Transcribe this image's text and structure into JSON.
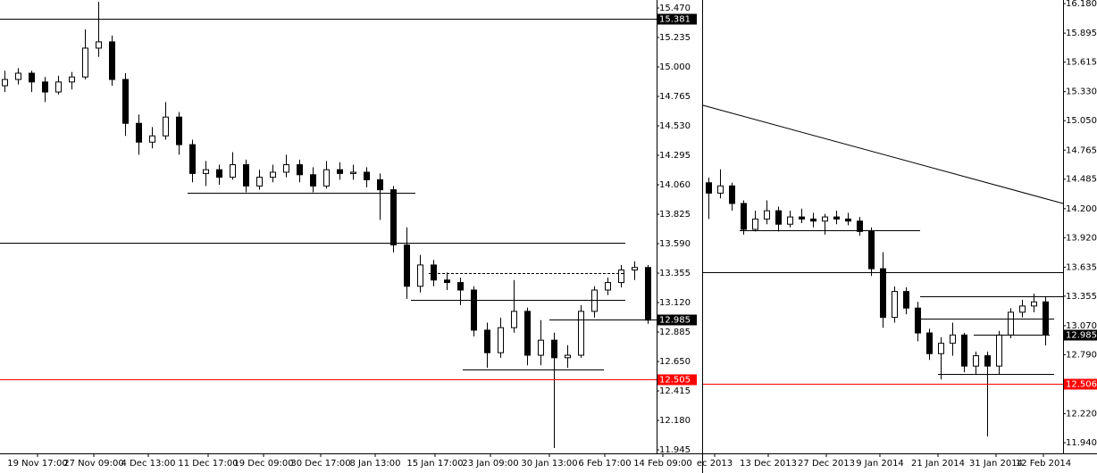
{
  "chart_data": [
    {
      "type": "candlestick",
      "up_color": "#ffffff",
      "down_color": "#000000",
      "categories": [
        "19 Nov 17:00",
        "27 Nov 09:00",
        "4 Dec 13:00",
        "11 Dec 17:00",
        "19 Dec 09:00",
        "30 Dec 17:00",
        "8 Jan 13:00",
        "15 Jan 17:00",
        "23 Jan 09:00",
        "30 Jan 13:00",
        "6 Feb 17:00",
        "14 Feb 09:00"
      ],
      "ylim": [
        11.917,
        15.534
      ],
      "yticks": [
        {
          "value": 15.47,
          "label": "15.470"
        },
        15.235,
        {
          "value": 15,
          "label": "15.000"
        },
        14.765,
        {
          "value": 14.53,
          "label": "14.530"
        },
        14.295,
        {
          "value": 14.06,
          "label": "14.060"
        },
        13.825,
        {
          "value": 13.59,
          "label": "13.590"
        },
        13.355,
        {
          "value": 13.12,
          "label": "13.120"
        },
        12.885,
        {
          "value": 12.65,
          "label": "12.650"
        },
        12.415,
        {
          "value": 12.18,
          "label": "12.180"
        },
        11.945
      ],
      "levels": [
        {
          "value": 15.381,
          "color": "#000000",
          "boxed": true
        },
        {
          "value": 13.597,
          "color": "#000000"
        },
        {
          "value": 12.505,
          "color": "#ff0000",
          "boxed": true
        },
        {
          "value": 12.985,
          "color": "#000000",
          "boxed": true
        },
        {
          "value": 13.996,
          "color": "#000000"
        },
        {
          "value": 13.141,
          "color": "#000000"
        },
        {
          "value": 13.355,
          "color": "#000000",
          "dash": true
        },
        {
          "value": 12.585,
          "color": "#000000"
        }
      ],
      "candles": [
        [
          14.85,
          14.97,
          14.8,
          14.9
        ],
        [
          14.9,
          14.99,
          14.86,
          14.95
        ],
        [
          14.95,
          14.97,
          14.8,
          14.88
        ],
        [
          14.88,
          14.92,
          14.72,
          14.8
        ],
        [
          14.8,
          14.93,
          14.78,
          14.88
        ],
        [
          14.88,
          14.96,
          14.82,
          14.92
        ],
        [
          14.92,
          15.3,
          14.9,
          15.15
        ],
        [
          15.15,
          15.52,
          15.08,
          15.2
        ],
        [
          15.2,
          15.25,
          14.85,
          14.9
        ],
        [
          14.9,
          14.95,
          14.45,
          14.55
        ],
        [
          14.55,
          14.62,
          14.3,
          14.4
        ],
        [
          14.4,
          14.52,
          14.35,
          14.45
        ],
        [
          14.45,
          14.72,
          14.42,
          14.6
        ],
        [
          14.6,
          14.64,
          14.3,
          14.38
        ],
        [
          14.38,
          14.42,
          14.08,
          14.15
        ],
        [
          14.15,
          14.25,
          14.05,
          14.18
        ],
        [
          14.18,
          14.22,
          14.06,
          14.12
        ],
        [
          14.12,
          14.32,
          14.1,
          14.22
        ],
        [
          14.22,
          14.26,
          14.0,
          14.05
        ],
        [
          14.05,
          14.18,
          14.02,
          14.12
        ],
        [
          14.12,
          14.22,
          14.08,
          14.16
        ],
        [
          14.16,
          14.3,
          14.12,
          14.22
        ],
        [
          14.22,
          14.26,
          14.08,
          14.14
        ],
        [
          14.14,
          14.2,
          14.0,
          14.05
        ],
        [
          14.05,
          14.25,
          14.03,
          14.18
        ],
        [
          14.18,
          14.24,
          14.1,
          14.15
        ],
        [
          14.15,
          14.22,
          14.1,
          14.16
        ],
        [
          14.16,
          14.2,
          14.04,
          14.1
        ],
        [
          14.1,
          14.15,
          13.78,
          14.02
        ],
        [
          14.02,
          14.05,
          13.52,
          13.58
        ],
        [
          13.58,
          13.72,
          13.15,
          13.25
        ],
        [
          13.25,
          13.5,
          13.2,
          13.42
        ],
        [
          13.42,
          13.46,
          13.25,
          13.3
        ],
        [
          13.3,
          13.36,
          13.22,
          13.28
        ],
        [
          13.28,
          13.32,
          13.1,
          13.22
        ],
        [
          13.22,
          13.25,
          12.85,
          12.9
        ],
        [
          12.9,
          12.96,
          12.6,
          12.72
        ],
        [
          12.72,
          13.0,
          12.68,
          12.92
        ],
        [
          12.92,
          13.3,
          12.88,
          13.05
        ],
        [
          13.05,
          13.08,
          12.62,
          12.7
        ],
        [
          12.7,
          12.98,
          12.62,
          12.82
        ],
        [
          12.82,
          12.88,
          11.96,
          12.68
        ],
        [
          12.68,
          12.78,
          12.6,
          12.7
        ],
        [
          12.7,
          13.1,
          12.68,
          13.05
        ],
        [
          13.05,
          13.25,
          13.0,
          13.22
        ],
        [
          13.22,
          13.32,
          13.18,
          13.28
        ],
        [
          13.28,
          13.42,
          13.24,
          13.38
        ],
        [
          13.38,
          13.45,
          13.3,
          13.4
        ],
        [
          13.4,
          13.42,
          12.95,
          12.98
        ]
      ]
    },
    {
      "type": "candlestick",
      "up_color": "#ffffff",
      "down_color": "#000000",
      "categories": [
        "ec 2013",
        "13 Dec 2013",
        "27 Dec 2013",
        "9 Jan 2014",
        "21 Jan 2014",
        "31 Jan 2014",
        "12 Feb 2014"
      ],
      "ylim": [
        11.837,
        16.215
      ],
      "yticks": [
        {
          "value": 16.18,
          "label": "16.180"
        },
        15.895,
        15.615,
        {
          "value": 15.33,
          "label": "15.330"
        },
        {
          "value": 15.05,
          "label": "15.050"
        },
        14.765,
        14.485,
        {
          "value": 14.2,
          "label": "14.200"
        },
        {
          "value": 13.92,
          "label": "13.920"
        },
        13.635,
        13.355,
        {
          "value": 13.07,
          "label": "13.070"
        },
        {
          "value": 12.79,
          "label": "12.790"
        },
        {
          "value": 12.22,
          "label": "12.220"
        },
        {
          "value": 11.94,
          "label": "11.940"
        }
      ],
      "levels": [
        {
          "value": 13.59,
          "color": "#000000"
        },
        {
          "value": 12.506,
          "color": "#ff0000",
          "boxed": true
        },
        {
          "value": 12.985,
          "color": "#000000",
          "boxed": true
        },
        {
          "value": 13.99,
          "color": "#000000"
        },
        {
          "value": 13.35,
          "color": "#000000"
        },
        {
          "value": 13.14,
          "color": "#000000"
        },
        {
          "value": 12.6,
          "color": "#000000"
        }
      ],
      "trendline": [
        15.198,
        14.25
      ],
      "candles": [
        [
          14.45,
          14.5,
          14.1,
          14.35
        ],
        [
          14.35,
          14.58,
          14.3,
          14.42
        ],
        [
          14.42,
          14.45,
          14.18,
          14.25
        ],
        [
          14.25,
          14.28,
          13.95,
          14.0
        ],
        [
          14.0,
          14.18,
          13.98,
          14.1
        ],
        [
          14.1,
          14.28,
          14.05,
          14.18
        ],
        [
          14.18,
          14.22,
          13.98,
          14.05
        ],
        [
          14.05,
          14.18,
          14.02,
          14.12
        ],
        [
          14.12,
          14.2,
          14.06,
          14.1
        ],
        [
          14.1,
          14.16,
          14.02,
          14.08
        ],
        [
          14.08,
          14.15,
          13.95,
          14.12
        ],
        [
          14.12,
          14.18,
          14.05,
          14.1
        ],
        [
          14.1,
          14.16,
          14.04,
          14.08
        ],
        [
          14.08,
          14.12,
          13.94,
          13.98
        ],
        [
          13.98,
          14.02,
          13.55,
          13.62
        ],
        [
          13.62,
          13.78,
          13.05,
          13.15
        ],
        [
          13.15,
          13.45,
          13.1,
          13.4
        ],
        [
          13.4,
          13.44,
          13.18,
          13.24
        ],
        [
          13.24,
          13.3,
          12.92,
          13.0
        ],
        [
          13.0,
          13.04,
          12.74,
          12.8
        ],
        [
          12.8,
          12.96,
          12.55,
          12.9
        ],
        [
          12.9,
          13.1,
          12.78,
          12.98
        ],
        [
          12.98,
          13.0,
          12.62,
          12.68
        ],
        [
          12.68,
          12.82,
          12.6,
          12.78
        ],
        [
          12.78,
          12.82,
          12.0,
          12.68
        ],
        [
          12.68,
          13.02,
          12.6,
          12.98
        ],
        [
          12.98,
          13.24,
          12.95,
          13.2
        ],
        [
          13.2,
          13.32,
          13.15,
          13.26
        ],
        [
          13.26,
          13.38,
          13.2,
          13.3
        ],
        [
          13.3,
          13.35,
          12.88,
          12.98
        ]
      ]
    }
  ]
}
